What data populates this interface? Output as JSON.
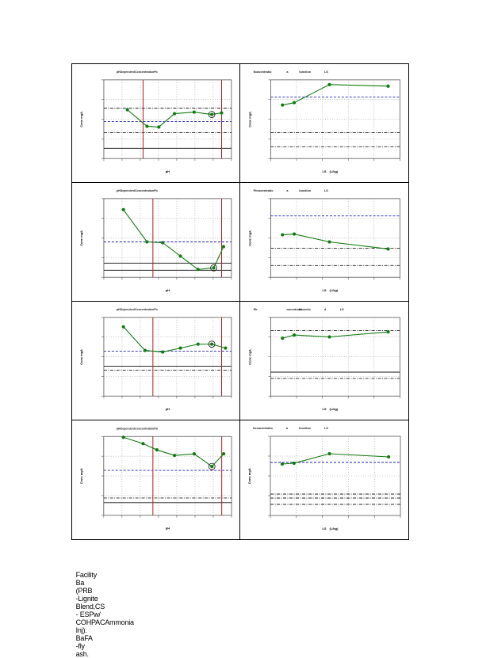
{
  "caption": {
    "parts": [
      "Facility",
      "Ba",
      "(PRB",
      "-Lignite",
      "Blend,CS",
      "- ESPw/",
      "COHPACAmmonia",
      "Inj).",
      "BaFA",
      "-fly",
      "ash."
    ]
  },
  "chart_data": [
    {
      "id": "ph-1",
      "type": "line",
      "title": "pHDependentConcentrationPb",
      "xlabel": "pH",
      "ylabel": "Conc mg/L",
      "x": [
        1.2,
        2.2,
        2.8,
        3.6,
        4.6,
        5.5,
        6.0
      ],
      "y": [
        0.62,
        0.41,
        0.4,
        0.57,
        0.59,
        0.56,
        0.58
      ],
      "xlim": [
        0,
        6.5
      ],
      "ylim": [
        0,
        1
      ],
      "highlight_index": 5,
      "ref_lines": [
        {
          "y": 0.47,
          "style": "blue-dash"
        },
        {
          "y": 0.64,
          "style": "dash-dot"
        },
        {
          "y": 0.33,
          "style": "dash-dot"
        },
        {
          "y": 0.13,
          "style": "solid"
        }
      ],
      "vlines": [
        2,
        6
      ]
    },
    {
      "id": "ls-1",
      "type": "line",
      "title": "Ncacentratio",
      "title_parts": [
        "Ncacentratio",
        "a",
        "function",
        "LS"
      ],
      "xlabel": "LS",
      "xlabel_parts": [
        "LS",
        "(L/kg)"
      ],
      "ylabel": "Conc mg/L",
      "x": [
        1,
        2,
        5,
        10
      ],
      "y": [
        0.68,
        0.71,
        0.94,
        0.92
      ],
      "xlim": [
        0,
        11
      ],
      "ylim": [
        0,
        1
      ],
      "ref_lines": [
        {
          "y": 0.78,
          "style": "blue-dash"
        },
        {
          "y": 0.33,
          "style": "dash-dot"
        },
        {
          "y": 0.15,
          "style": "dash-dot"
        }
      ]
    },
    {
      "id": "ph-2",
      "type": "line",
      "title": "pHDependentConcentrationPb",
      "xlabel": "pH",
      "ylabel": "Conc mg/L",
      "x": [
        1.0,
        2.2,
        3.0,
        3.9,
        4.8,
        5.6,
        6.1
      ],
      "y": [
        0.86,
        0.45,
        0.44,
        0.27,
        0.1,
        0.12,
        0.39
      ],
      "xlim": [
        0,
        6.5
      ],
      "ylim": [
        0,
        1
      ],
      "highlight_index": 5,
      "ref_lines": [
        {
          "y": 0.45,
          "style": "blue-dash"
        },
        {
          "y": 0.18,
          "style": "solid"
        },
        {
          "y": 0.09,
          "style": "solid"
        }
      ],
      "vlines": [
        2.5,
        6
      ]
    },
    {
      "id": "ls-2",
      "type": "line",
      "title": "Phcacentratio",
      "title_parts": [
        "Phcacentratio",
        "a",
        "function",
        "LS"
      ],
      "xlabel": "LS",
      "xlabel_parts": [
        "LS",
        "(L/kg)"
      ],
      "ylabel": "Conc mg/L",
      "x": [
        1,
        2,
        5,
        10
      ],
      "y": [
        0.54,
        0.55,
        0.45,
        0.36
      ],
      "xlim": [
        0,
        11
      ],
      "ylim": [
        0,
        1
      ],
      "ref_lines": [
        {
          "y": 0.78,
          "style": "blue-dash"
        },
        {
          "y": 0.37,
          "style": "dash-dot"
        },
        {
          "y": 0.15,
          "style": "dash-dot"
        }
      ]
    },
    {
      "id": "ph-3",
      "type": "line",
      "title": "pHDependentConcentrationPb",
      "xlabel": "pH",
      "ylabel": "Conc mg/L",
      "x": [
        1.0,
        2.1,
        3.0,
        3.9,
        4.8,
        5.5,
        6.2
      ],
      "y": [
        0.88,
        0.58,
        0.56,
        0.61,
        0.66,
        0.66,
        0.61
      ],
      "xlim": [
        0,
        6.5
      ],
      "ylim": [
        0,
        1
      ],
      "highlight_index": 5,
      "ref_lines": [
        {
          "y": 0.57,
          "style": "blue-dash"
        },
        {
          "y": 0.38,
          "style": "solid"
        },
        {
          "y": 0.33,
          "style": "dash-dot"
        }
      ],
      "vlines": [
        2.5,
        6
      ]
    },
    {
      "id": "ls-3",
      "type": "line",
      "title": "Sbcacentratio",
      "title_parts": [
        "Sb",
        "cacentratio",
        "afunctio",
        "d",
        "LS"
      ],
      "xlabel": "LS",
      "xlabel_parts": [
        "LS",
        "(L/kg)"
      ],
      "ylabel": "Conc mg/L",
      "x": [
        1,
        2,
        5,
        10
      ],
      "y": [
        0.92,
        0.97,
        0.94,
        1.02
      ],
      "xlim": [
        0,
        11
      ],
      "ylim": [
        0,
        1.25
      ],
      "ref_lines": [
        {
          "y": 1.04,
          "style": "dash-dot"
        },
        {
          "y": 0.38,
          "style": "solid"
        },
        {
          "y": 0.28,
          "style": "dash-dot"
        }
      ]
    },
    {
      "id": "ph-4",
      "type": "line",
      "title": "pHDependentConcentrationPb",
      "xlabel": "pH",
      "ylabel": "Conc mg/L",
      "x": [
        1.0,
        2.0,
        2.7,
        3.6,
        4.6,
        5.5,
        6.1
      ],
      "y": [
        0.99,
        0.91,
        0.83,
        0.76,
        0.78,
        0.62,
        0.78
      ],
      "xlim": [
        0,
        6.5
      ],
      "ylim": [
        0,
        1
      ],
      "highlight_index": 5,
      "ref_lines": [
        {
          "y": 0.57,
          "style": "blue-dash"
        },
        {
          "y": 0.22,
          "style": "dash-dot"
        },
        {
          "y": 0.16,
          "style": "solid"
        }
      ],
      "vlines": [
        2.5,
        6
      ]
    },
    {
      "id": "ls-4",
      "type": "line",
      "title": "Secacentratio",
      "title_parts": [
        "Secacentratio",
        "a",
        "function",
        "LS"
      ],
      "xlabel": "LS",
      "xlabel_parts": [
        "LS",
        "(L/kg)"
      ],
      "ylabel": "Conc mg/L",
      "x": [
        1,
        2,
        5,
        10
      ],
      "y": [
        0.65,
        0.66,
        0.78,
        0.74
      ],
      "xlim": [
        0,
        11
      ],
      "ylim": [
        0,
        1
      ],
      "ref_lines": [
        {
          "y": 0.67,
          "style": "blue-dash"
        },
        {
          "y": 0.27,
          "style": "dash-dot"
        },
        {
          "y": 0.22,
          "style": "dash-dot"
        },
        {
          "y": 0.14,
          "style": "dash-dot"
        }
      ]
    }
  ]
}
